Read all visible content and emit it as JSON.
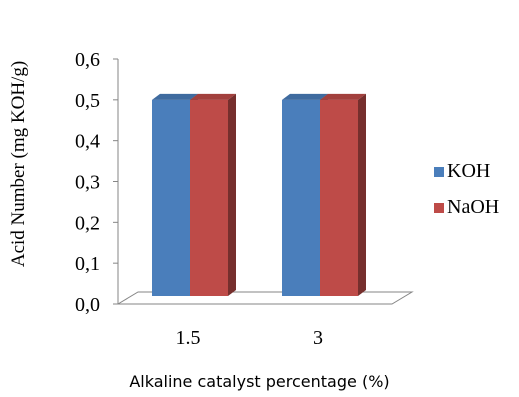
{
  "chart_data": {
    "type": "bar",
    "categories": [
      "1.5",
      "3"
    ],
    "series": [
      {
        "name": "KOH",
        "values": [
          0.5,
          0.5
        ],
        "color": "#4a7ebb"
      },
      {
        "name": "NaOH",
        "values": [
          0.5,
          0.5
        ],
        "color": "#be4b48"
      }
    ],
    "ylabel": "Acid Number (mg KOH/g)",
    "xlabel": "Alkaline catalyst percentage (%)",
    "ylim": [
      0,
      0.6
    ],
    "yticks": [
      "0,0",
      "0,1",
      "0,2",
      "0,3",
      "0,4",
      "0,5",
      "0,6"
    ],
    "legend_position": "right",
    "grid": false,
    "style": "3d-clustered-column"
  }
}
